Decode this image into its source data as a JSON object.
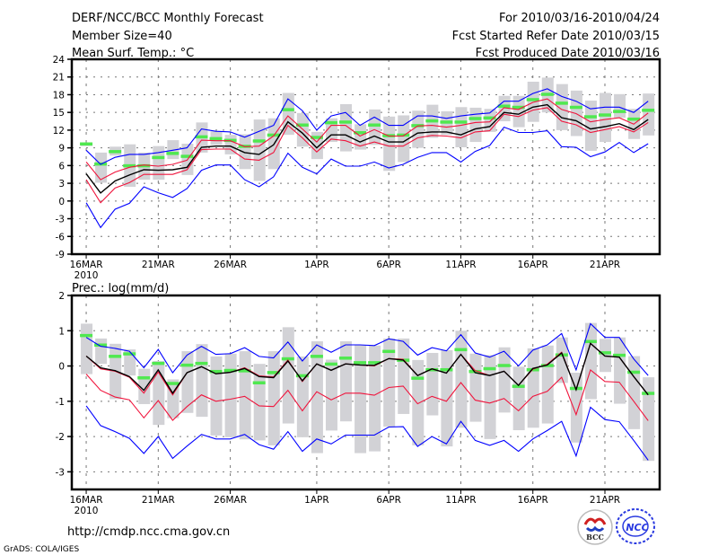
{
  "header": {
    "title": "DERF/NCC/BCC Monthly Forecast",
    "member_size": "Member Size=40",
    "forecast_period": "For 2010/03/16-2010/04/24",
    "fcst_started": "Fcst Started Refer Date 2010/03/15",
    "fcst_produced": "Fcst Produced Date 2010/03/16"
  },
  "footer": {
    "url": "http://cmdp.ncc.cma.gov.cn",
    "credit": "GrADS: COLA/IGES",
    "logo_bcc": "BCC",
    "logo_ncc": "NCC"
  },
  "colors": {
    "blue": "#0000ff",
    "red": "#f0143c",
    "mean": "#000000",
    "green": "#50e850",
    "gray": "#d2d2d6"
  },
  "chart_data": [
    {
      "type": "line",
      "title": "Mean Surf. Temp.: °C",
      "ylabel": "°C",
      "ylim": [
        -9,
        24
      ],
      "yticks": [
        "24",
        "21",
        "18",
        "15",
        "12",
        "9",
        "6",
        "3",
        "0",
        "-3",
        "-6",
        "-9"
      ],
      "ytick_values": [
        24,
        21,
        18,
        15,
        12,
        9,
        6,
        3,
        0,
        -3,
        -6,
        -9
      ],
      "xlim": [
        -1,
        39.8
      ],
      "xticks": [
        {
          "day": 0,
          "label": "16MAR",
          "sub": "2010"
        },
        {
          "day": 5,
          "label": "21MAR"
        },
        {
          "day": 10,
          "label": "26MAR"
        },
        {
          "day": 16,
          "label": "1APR"
        },
        {
          "day": 21,
          "label": "6APR"
        },
        {
          "day": 26,
          "label": "11APR"
        },
        {
          "day": 31,
          "label": "16APR"
        },
        {
          "day": 36,
          "label": "21APR"
        }
      ],
      "grid": true,
      "series": {
        "green_bar": [
          9.7,
          6.3,
          8.4,
          6.0,
          6.0,
          7.4,
          8.1,
          7.6,
          10.9,
          10.6,
          10.3,
          9.3,
          10.2,
          11.2,
          15.5,
          12.9,
          10.8,
          13.3,
          13.4,
          11.6,
          12.9,
          11.1,
          11.2,
          12.8,
          13.6,
          13.4,
          13.4,
          14.0,
          14.1,
          16.1,
          15.9,
          17.2,
          18.1,
          16.6,
          15.9,
          14.3,
          14.6,
          15.2,
          13.9,
          15.4
        ],
        "range_hi": [
          9.9,
          8.2,
          9.2,
          9.6,
          8.2,
          9.3,
          10.3,
          9.7,
          13.3,
          11.8,
          11.2,
          11.3,
          13.8,
          14.0,
          18.3,
          14.9,
          11.7,
          14.0,
          16.4,
          13.0,
          15.5,
          14.3,
          14.5,
          15.3,
          16.3,
          15.2,
          15.9,
          15.8,
          15.6,
          17.8,
          17.8,
          20.2,
          20.9,
          19.8,
          18.7,
          17.0,
          18.3,
          18.1,
          15.6,
          18.2
        ],
        "range_lo": [
          9.3,
          3.1,
          7.7,
          2.4,
          3.6,
          3.6,
          7.1,
          4.4,
          8.2,
          9.5,
          7.9,
          5.4,
          3.4,
          5.4,
          11.2,
          9.2,
          7.1,
          10.0,
          8.4,
          8.7,
          9.5,
          5.1,
          6.6,
          9.0,
          10.7,
          11.2,
          9.1,
          10.0,
          11.7,
          13.5,
          12.5,
          13.4,
          15.0,
          12.0,
          11.0,
          8.5,
          10.0,
          14.1,
          10.5,
          11.1
        ],
        "blue_hi": [
          8.6,
          6.2,
          7.4,
          7.9,
          7.9,
          8.2,
          8.6,
          9.0,
          12.2,
          11.8,
          11.7,
          10.8,
          11.8,
          12.8,
          17.3,
          15.3,
          12.0,
          14.4,
          15.0,
          12.8,
          14.2,
          12.8,
          12.8,
          14.4,
          14.4,
          14.0,
          14.4,
          14.7,
          14.9,
          16.9,
          16.9,
          18.2,
          19.0,
          17.7,
          16.9,
          15.6,
          15.9,
          15.9,
          15.0,
          16.9
        ],
        "red_hi": [
          6.6,
          3.6,
          4.9,
          5.7,
          6.1,
          5.9,
          6.2,
          6.9,
          10.3,
          10.2,
          10.2,
          9.2,
          9.3,
          11.0,
          14.4,
          12.2,
          10.0,
          12.8,
          12.8,
          11.0,
          12.1,
          11.0,
          11.0,
          12.7,
          12.8,
          12.5,
          12.8,
          13.3,
          13.4,
          15.8,
          15.5,
          16.7,
          17.3,
          15.5,
          14.8,
          13.4,
          13.8,
          14.1,
          13.0,
          14.9
        ],
        "mean": [
          4.6,
          1.35,
          3.4,
          4.4,
          5.3,
          5.2,
          5.3,
          5.7,
          9.1,
          9.3,
          9.3,
          8.2,
          7.9,
          9.5,
          13.4,
          11.5,
          9.0,
          11.2,
          11.2,
          10.0,
          11.0,
          10.0,
          10.0,
          11.5,
          11.7,
          11.7,
          11.2,
          12.2,
          12.6,
          15.0,
          14.7,
          15.9,
          16.3,
          14.1,
          13.6,
          12.2,
          12.6,
          13.1,
          12.1,
          13.8
        ],
        "red_lo": [
          3.6,
          -0.3,
          2.2,
          3.1,
          4.5,
          4.5,
          4.5,
          5.3,
          8.7,
          8.8,
          8.8,
          7.1,
          6.9,
          8.2,
          12.8,
          10.7,
          8.3,
          10.5,
          10.2,
          9.3,
          10.0,
          9.3,
          9.3,
          10.7,
          11.1,
          11.0,
          10.7,
          11.7,
          11.9,
          14.7,
          14.3,
          15.4,
          15.8,
          13.5,
          12.9,
          11.6,
          12.1,
          12.6,
          11.7,
          13.3
        ],
        "blue_lo": [
          -0.3,
          -4.5,
          -1.4,
          -0.4,
          2.4,
          1.4,
          0.6,
          2.1,
          5.2,
          6.1,
          6.1,
          3.6,
          2.4,
          4.1,
          8.1,
          5.7,
          4.6,
          7.1,
          5.9,
          5.9,
          6.6,
          5.6,
          6.2,
          7.4,
          8.2,
          8.2,
          6.6,
          8.4,
          9.4,
          12.5,
          11.6,
          11.6,
          11.9,
          9.2,
          9.1,
          7.5,
          8.3,
          9.9,
          8.2,
          9.7
        ]
      }
    },
    {
      "type": "line",
      "title": "Prec.: log(mm/d)",
      "ylabel": "log(mm/d)",
      "ylim": [
        -3.5,
        2
      ],
      "yticks": [
        "2",
        "1",
        "0",
        "-1",
        "-2",
        "-3"
      ],
      "ytick_values": [
        2,
        1,
        0,
        -1,
        -2,
        -3
      ],
      "xlim": [
        -1,
        39.8
      ],
      "xticks": [
        {
          "day": 0,
          "label": "16MAR",
          "sub": "2010"
        },
        {
          "day": 5,
          "label": "21MAR"
        },
        {
          "day": 10,
          "label": "26MAR"
        },
        {
          "day": 16,
          "label": "1APR"
        },
        {
          "day": 21,
          "label": "6APR"
        },
        {
          "day": 26,
          "label": "11APR"
        },
        {
          "day": 31,
          "label": "16APR"
        },
        {
          "day": 36,
          "label": "21APR"
        }
      ],
      "grid": true,
      "series": {
        "green_bar": [
          0.87,
          0.6,
          0.28,
          0.35,
          -0.33,
          0.08,
          -0.49,
          0.03,
          0.08,
          -0.15,
          -0.12,
          -0.13,
          -0.47,
          -0.18,
          0.21,
          -0.27,
          0.28,
          0.06,
          0.23,
          0.1,
          0.1,
          0.42,
          0.17,
          -0.34,
          -0.1,
          -0.1,
          0.47,
          -0.15,
          -0.07,
          0.02,
          -0.57,
          -0.1,
          0.02,
          0.32,
          -0.63,
          0.7,
          0.38,
          0.31,
          -0.17,
          -0.77
        ],
        "range_hi": [
          1.2,
          0.78,
          0.63,
          0.47,
          -0.08,
          0.14,
          -0.38,
          0.42,
          0.62,
          0.27,
          0.35,
          0.42,
          0.06,
          0.42,
          1.1,
          0.27,
          0.7,
          0.18,
          0.7,
          0.6,
          0.58,
          0.78,
          0.78,
          0.17,
          0.37,
          0.45,
          1.0,
          0.35,
          0.31,
          0.53,
          -0.02,
          0.5,
          0.58,
          0.81,
          -0.19,
          1.22,
          0.77,
          0.81,
          0.28,
          -0.32
        ],
        "range_lo": [
          -0.23,
          0.06,
          -0.94,
          -0.27,
          -1.08,
          -1.67,
          -1.48,
          -1.33,
          -1.44,
          -1.97,
          -2.02,
          -2.08,
          -2.11,
          -2.25,
          -1.63,
          -2.02,
          -2.47,
          -1.83,
          -1.57,
          -2.47,
          -2.42,
          -1.72,
          -1.36,
          -2.25,
          -1.4,
          -2.28,
          -1.75,
          -1.58,
          -2.07,
          -1.32,
          -1.82,
          -1.75,
          -1.63,
          -0.48,
          -2.17,
          -0.94,
          -0.17,
          -1.07,
          -1.79,
          -2.69
        ],
        "blue_hi": [
          0.81,
          0.56,
          0.5,
          0.42,
          -0.05,
          0.47,
          -0.19,
          0.31,
          0.56,
          0.33,
          0.35,
          0.52,
          0.27,
          0.23,
          0.68,
          0.14,
          0.6,
          0.39,
          0.6,
          0.6,
          0.58,
          0.77,
          0.7,
          0.31,
          0.52,
          0.43,
          0.89,
          0.37,
          0.25,
          0.42,
          0.0,
          0.45,
          0.6,
          0.92,
          -0.11,
          1.2,
          0.81,
          0.81,
          0.2,
          -0.27
        ],
        "red_hi": [
          0.28,
          -0.08,
          -0.15,
          -0.32,
          -0.77,
          -0.17,
          -0.82,
          -0.19,
          -0.02,
          -0.22,
          -0.18,
          -0.05,
          -0.28,
          -0.31,
          0.17,
          -0.44,
          0.06,
          -0.12,
          0.06,
          0.03,
          0.0,
          0.21,
          0.19,
          -0.27,
          -0.08,
          -0.2,
          0.33,
          -0.13,
          -0.27,
          -0.15,
          -0.55,
          -0.09,
          0.05,
          0.39,
          -0.67,
          0.64,
          0.28,
          0.25,
          -0.3,
          -0.82
        ],
        "mean": [
          0.28,
          -0.05,
          -0.13,
          -0.3,
          -0.69,
          -0.11,
          -0.77,
          -0.19,
          -0.02,
          -0.22,
          -0.18,
          -0.07,
          -0.3,
          -0.33,
          0.14,
          -0.42,
          0.06,
          -0.12,
          0.06,
          0.03,
          0.02,
          0.21,
          0.17,
          -0.27,
          -0.08,
          -0.2,
          0.33,
          -0.19,
          -0.27,
          -0.15,
          -0.55,
          -0.07,
          0.03,
          0.37,
          -0.67,
          0.64,
          0.28,
          0.25,
          -0.3,
          -0.82
        ],
        "red_lo": [
          -0.23,
          -0.69,
          -0.88,
          -0.96,
          -1.47,
          -0.98,
          -1.54,
          -1.15,
          -0.82,
          -1.0,
          -0.94,
          -0.86,
          -1.13,
          -1.15,
          -0.69,
          -1.27,
          -0.73,
          -0.96,
          -0.77,
          -0.77,
          -0.83,
          -0.61,
          -0.57,
          -1.07,
          -0.86,
          -1.0,
          -0.47,
          -0.97,
          -1.05,
          -0.92,
          -1.27,
          -0.86,
          -0.72,
          -0.32,
          -1.38,
          -0.11,
          -0.44,
          -0.46,
          -1.0,
          -1.55
        ],
        "blue_lo": [
          -1.13,
          -1.69,
          -1.86,
          -2.05,
          -2.48,
          -2.0,
          -2.62,
          -2.27,
          -1.94,
          -2.07,
          -2.07,
          -1.94,
          -2.23,
          -2.36,
          -1.86,
          -2.42,
          -2.07,
          -2.21,
          -1.96,
          -1.96,
          -1.96,
          -1.73,
          -1.72,
          -2.28,
          -2.0,
          -2.21,
          -1.57,
          -2.11,
          -2.25,
          -2.11,
          -2.42,
          -2.07,
          -1.83,
          -1.57,
          -2.55,
          -1.17,
          -1.52,
          -1.58,
          -2.11,
          -2.67
        ]
      }
    }
  ]
}
